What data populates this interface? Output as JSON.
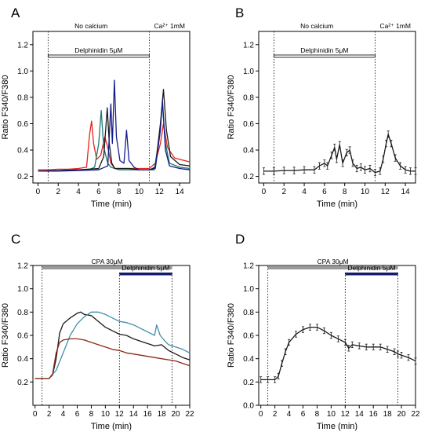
{
  "chart_data": [
    {
      "panel": "A",
      "type": "line",
      "xlabel": "Time (min)",
      "ylabel": "Ratio F340/F380",
      "xlim": [
        -0.5,
        15
      ],
      "ylim": [
        0.15,
        1.3
      ],
      "xticks": [
        0,
        2,
        4,
        6,
        8,
        10,
        12,
        14
      ],
      "yticks": [
        0.2,
        0.4,
        0.6,
        0.8,
        1.0,
        1.2
      ],
      "conditions": [
        {
          "label": "No calcium",
          "start": -0.5,
          "end": 11
        },
        {
          "label": "Ca²⁺ 1mM",
          "start": 11,
          "end": 15
        }
      ],
      "treatment_bar": {
        "label": "Delphinidin 5μM",
        "start": 1,
        "end": 11,
        "style": "open"
      },
      "vlines": [
        1,
        11,
        15
      ],
      "series": [
        {
          "color": "#e8231e",
          "values": [
            [
              0,
              0.25
            ],
            [
              1,
              0.25
            ],
            [
              2,
              0.255
            ],
            [
              3,
              0.255
            ],
            [
              4,
              0.26
            ],
            [
              4.8,
              0.27
            ],
            [
              5.1,
              0.52
            ],
            [
              5.3,
              0.62
            ],
            [
              5.5,
              0.45
            ],
            [
              5.8,
              0.33
            ],
            [
              6.2,
              0.36
            ],
            [
              6.6,
              0.5
            ],
            [
              6.9,
              0.42
            ],
            [
              7.2,
              0.3
            ],
            [
              7.6,
              0.26
            ],
            [
              8.5,
              0.26
            ],
            [
              10,
              0.26
            ],
            [
              11,
              0.26
            ],
            [
              11.6,
              0.3
            ],
            [
              12.1,
              0.45
            ],
            [
              12.4,
              0.6
            ],
            [
              12.8,
              0.42
            ],
            [
              13.5,
              0.34
            ],
            [
              14.5,
              0.32
            ],
            [
              15,
              0.31
            ]
          ]
        },
        {
          "color": "#1b7a70",
          "values": [
            [
              0,
              0.24
            ],
            [
              2,
              0.245
            ],
            [
              4,
              0.25
            ],
            [
              5,
              0.25
            ],
            [
              5.6,
              0.27
            ],
            [
              6,
              0.45
            ],
            [
              6.25,
              0.7
            ],
            [
              6.5,
              0.42
            ],
            [
              6.9,
              0.3
            ],
            [
              7.2,
              0.27
            ],
            [
              8,
              0.25
            ],
            [
              10,
              0.25
            ],
            [
              11,
              0.25
            ],
            [
              11.5,
              0.25
            ],
            [
              12,
              0.5
            ],
            [
              12.3,
              0.75
            ],
            [
              12.6,
              0.45
            ],
            [
              13,
              0.3
            ],
            [
              14,
              0.27
            ],
            [
              15,
              0.26
            ]
          ]
        },
        {
          "color": "#1a1a1a",
          "values": [
            [
              0,
              0.24
            ],
            [
              2,
              0.245
            ],
            [
              4,
              0.25
            ],
            [
              6,
              0.26
            ],
            [
              6.5,
              0.35
            ],
            [
              6.85,
              0.72
            ],
            [
              7.05,
              0.45
            ],
            [
              7.3,
              0.3
            ],
            [
              7.6,
              0.26
            ],
            [
              9,
              0.26
            ],
            [
              10,
              0.25
            ],
            [
              11,
              0.25
            ],
            [
              11.6,
              0.27
            ],
            [
              12.1,
              0.6
            ],
            [
              12.4,
              0.86
            ],
            [
              12.7,
              0.55
            ],
            [
              13.1,
              0.35
            ],
            [
              14,
              0.29
            ],
            [
              15,
              0.28
            ]
          ]
        },
        {
          "color": "#141c8c",
          "values": [
            [
              0,
              0.24
            ],
            [
              2,
              0.24
            ],
            [
              4,
              0.245
            ],
            [
              6,
              0.25
            ],
            [
              6.9,
              0.28
            ],
            [
              7.2,
              0.75
            ],
            [
              7.35,
              0.45
            ],
            [
              7.55,
              0.93
            ],
            [
              7.75,
              0.5
            ],
            [
              8.1,
              0.32
            ],
            [
              8.5,
              0.3
            ],
            [
              8.75,
              0.55
            ],
            [
              9,
              0.32
            ],
            [
              9.5,
              0.27
            ],
            [
              10,
              0.25
            ],
            [
              11,
              0.25
            ],
            [
              11.6,
              0.26
            ],
            [
              12.1,
              0.55
            ],
            [
              12.3,
              0.78
            ],
            [
              12.6,
              0.4
            ],
            [
              13,
              0.28
            ],
            [
              14,
              0.26
            ],
            [
              15,
              0.25
            ]
          ]
        }
      ]
    },
    {
      "panel": "B",
      "type": "line",
      "xlabel": "Time (min)",
      "ylabel": "Ratio F340/F380",
      "xlim": [
        -0.5,
        15
      ],
      "ylim": [
        0.15,
        1.3
      ],
      "xticks": [
        0,
        2,
        4,
        6,
        8,
        10,
        12,
        14
      ],
      "yticks": [
        0.2,
        0.4,
        0.6,
        0.8,
        1.0,
        1.2
      ],
      "conditions": [
        {
          "label": "No calcium",
          "start": -0.5,
          "end": 11
        },
        {
          "label": "Ca²⁺ 1mM",
          "start": 11,
          "end": 15
        }
      ],
      "treatment_bar": {
        "label": "Delphinidin 5μM",
        "start": 1,
        "end": 11,
        "style": "open"
      },
      "vlines": [
        1,
        11,
        15
      ],
      "series": [
        {
          "color": "#1a1a1a",
          "error_bars": true,
          "values": [
            [
              0,
              0.24
            ],
            [
              1,
              0.24
            ],
            [
              2,
              0.245
            ],
            [
              3,
              0.245
            ],
            [
              4,
              0.25
            ],
            [
              5,
              0.25
            ],
            [
              5.5,
              0.28
            ],
            [
              6,
              0.3
            ],
            [
              6.3,
              0.28
            ],
            [
              6.7,
              0.36
            ],
            [
              7,
              0.42
            ],
            [
              7.2,
              0.33
            ],
            [
              7.5,
              0.44
            ],
            [
              7.8,
              0.3
            ],
            [
              8.2,
              0.38
            ],
            [
              8.5,
              0.4
            ],
            [
              8.8,
              0.3
            ],
            [
              9.2,
              0.26
            ],
            [
              9.6,
              0.27
            ],
            [
              10,
              0.25
            ],
            [
              10.5,
              0.26
            ],
            [
              11,
              0.23
            ],
            [
              11.5,
              0.24
            ],
            [
              11.8,
              0.33
            ],
            [
              12.1,
              0.45
            ],
            [
              12.3,
              0.52
            ],
            [
              12.6,
              0.45
            ],
            [
              13,
              0.34
            ],
            [
              13.5,
              0.28
            ],
            [
              14,
              0.25
            ],
            [
              14.5,
              0.24
            ],
            [
              15,
              0.24
            ]
          ]
        }
      ]
    },
    {
      "panel": "C",
      "type": "line",
      "xlabel": "Time (min)",
      "ylabel": "Ratio F340/F380",
      "xlim": [
        -0.3,
        22
      ],
      "ylim": [
        0.0,
        1.2
      ],
      "xticks": [
        0,
        2,
        4,
        6,
        8,
        10,
        12,
        14,
        16,
        18,
        20,
        22
      ],
      "yticks": [
        0.2,
        0.4,
        0.6,
        0.8,
        1.0,
        1.2
      ],
      "treatment_bar": {
        "label": "CPA 30μM",
        "start": 1,
        "end": 19.5,
        "style": "grey"
      },
      "treatment_bar_2": {
        "label": "Delphinidin 5μM",
        "start": 12,
        "end": 19.5,
        "style": "navy"
      },
      "vlines": [
        1,
        12,
        19.5
      ],
      "series": [
        {
          "color": "#1a1a1a",
          "values": [
            [
              0,
              0.23
            ],
            [
              1,
              0.23
            ],
            [
              2,
              0.23
            ],
            [
              2.5,
              0.26
            ],
            [
              3,
              0.4
            ],
            [
              3.5,
              0.62
            ],
            [
              4,
              0.7
            ],
            [
              5,
              0.75
            ],
            [
              6,
              0.79
            ],
            [
              6.5,
              0.8
            ],
            [
              7,
              0.78
            ],
            [
              8,
              0.77
            ],
            [
              9,
              0.72
            ],
            [
              10,
              0.67
            ],
            [
              11,
              0.64
            ],
            [
              12,
              0.61
            ],
            [
              13,
              0.6
            ],
            [
              14,
              0.57
            ],
            [
              15,
              0.55
            ],
            [
              16,
              0.53
            ],
            [
              17,
              0.51
            ],
            [
              18,
              0.52
            ],
            [
              19,
              0.47
            ],
            [
              20,
              0.44
            ],
            [
              21,
              0.41
            ],
            [
              22,
              0.39
            ]
          ]
        },
        {
          "color": "#3f90a8",
          "values": [
            [
              0,
              0.23
            ],
            [
              2,
              0.23
            ],
            [
              3,
              0.3
            ],
            [
              4,
              0.45
            ],
            [
              5,
              0.6
            ],
            [
              6,
              0.7
            ],
            [
              7,
              0.76
            ],
            [
              8,
              0.8
            ],
            [
              9,
              0.8
            ],
            [
              10,
              0.78
            ],
            [
              11,
              0.75
            ],
            [
              12,
              0.72
            ],
            [
              13,
              0.71
            ],
            [
              14,
              0.69
            ],
            [
              15,
              0.66
            ],
            [
              16,
              0.63
            ],
            [
              17,
              0.6
            ],
            [
              17.3,
              0.69
            ],
            [
              17.8,
              0.6
            ],
            [
              18.5,
              0.55
            ],
            [
              19,
              0.52
            ],
            [
              20,
              0.5
            ],
            [
              21,
              0.48
            ],
            [
              22,
              0.45
            ]
          ]
        },
        {
          "color": "#8b2a18",
          "values": [
            [
              0,
              0.23
            ],
            [
              2,
              0.23
            ],
            [
              2.5,
              0.27
            ],
            [
              3,
              0.45
            ],
            [
              3.5,
              0.54
            ],
            [
              4,
              0.56
            ],
            [
              5,
              0.57
            ],
            [
              6,
              0.57
            ],
            [
              7,
              0.56
            ],
            [
              8,
              0.54
            ],
            [
              9,
              0.52
            ],
            [
              10,
              0.5
            ],
            [
              11,
              0.48
            ],
            [
              12,
              0.47
            ],
            [
              13,
              0.45
            ],
            [
              14,
              0.44
            ],
            [
              15,
              0.43
            ],
            [
              16,
              0.42
            ],
            [
              17,
              0.41
            ],
            [
              18,
              0.4
            ],
            [
              19,
              0.39
            ],
            [
              20,
              0.38
            ],
            [
              21,
              0.36
            ],
            [
              22,
              0.34
            ]
          ]
        }
      ]
    },
    {
      "panel": "D",
      "type": "line",
      "xlabel": "Time (min)",
      "ylabel": "Ratio F340/F380",
      "xlim": [
        -0.3,
        22
      ],
      "ylim": [
        0.0,
        1.2
      ],
      "xticks": [
        0,
        2,
        4,
        6,
        8,
        10,
        12,
        14,
        16,
        18,
        20,
        22
      ],
      "yticks": [
        0.0,
        0.2,
        0.4,
        0.6,
        0.8,
        1.0,
        1.2
      ],
      "treatment_bar": {
        "label": "CPA 30μM",
        "start": 1,
        "end": 19.5,
        "style": "grey"
      },
      "treatment_bar_2": {
        "label": "Delphinidin 5μM",
        "start": 12,
        "end": 19.5,
        "style": "navy"
      },
      "vlines": [
        1,
        12,
        19.5
      ],
      "series": [
        {
          "color": "#1a1a1a",
          "error_bars": true,
          "values": [
            [
              0,
              0.22
            ],
            [
              1,
              0.22
            ],
            [
              2,
              0.22
            ],
            [
              2.5,
              0.25
            ],
            [
              3,
              0.36
            ],
            [
              3.5,
              0.46
            ],
            [
              4,
              0.54
            ],
            [
              5,
              0.61
            ],
            [
              6,
              0.65
            ],
            [
              7,
              0.67
            ],
            [
              8,
              0.67
            ],
            [
              9,
              0.64
            ],
            [
              10,
              0.6
            ],
            [
              11,
              0.57
            ],
            [
              12,
              0.54
            ],
            [
              12.5,
              0.49
            ],
            [
              13,
              0.52
            ],
            [
              14,
              0.51
            ],
            [
              15,
              0.5
            ],
            [
              16,
              0.5
            ],
            [
              17,
              0.5
            ],
            [
              18,
              0.48
            ],
            [
              19,
              0.46
            ],
            [
              19.5,
              0.44
            ],
            [
              20,
              0.43
            ],
            [
              21,
              0.41
            ],
            [
              22,
              0.38
            ]
          ]
        }
      ]
    }
  ]
}
